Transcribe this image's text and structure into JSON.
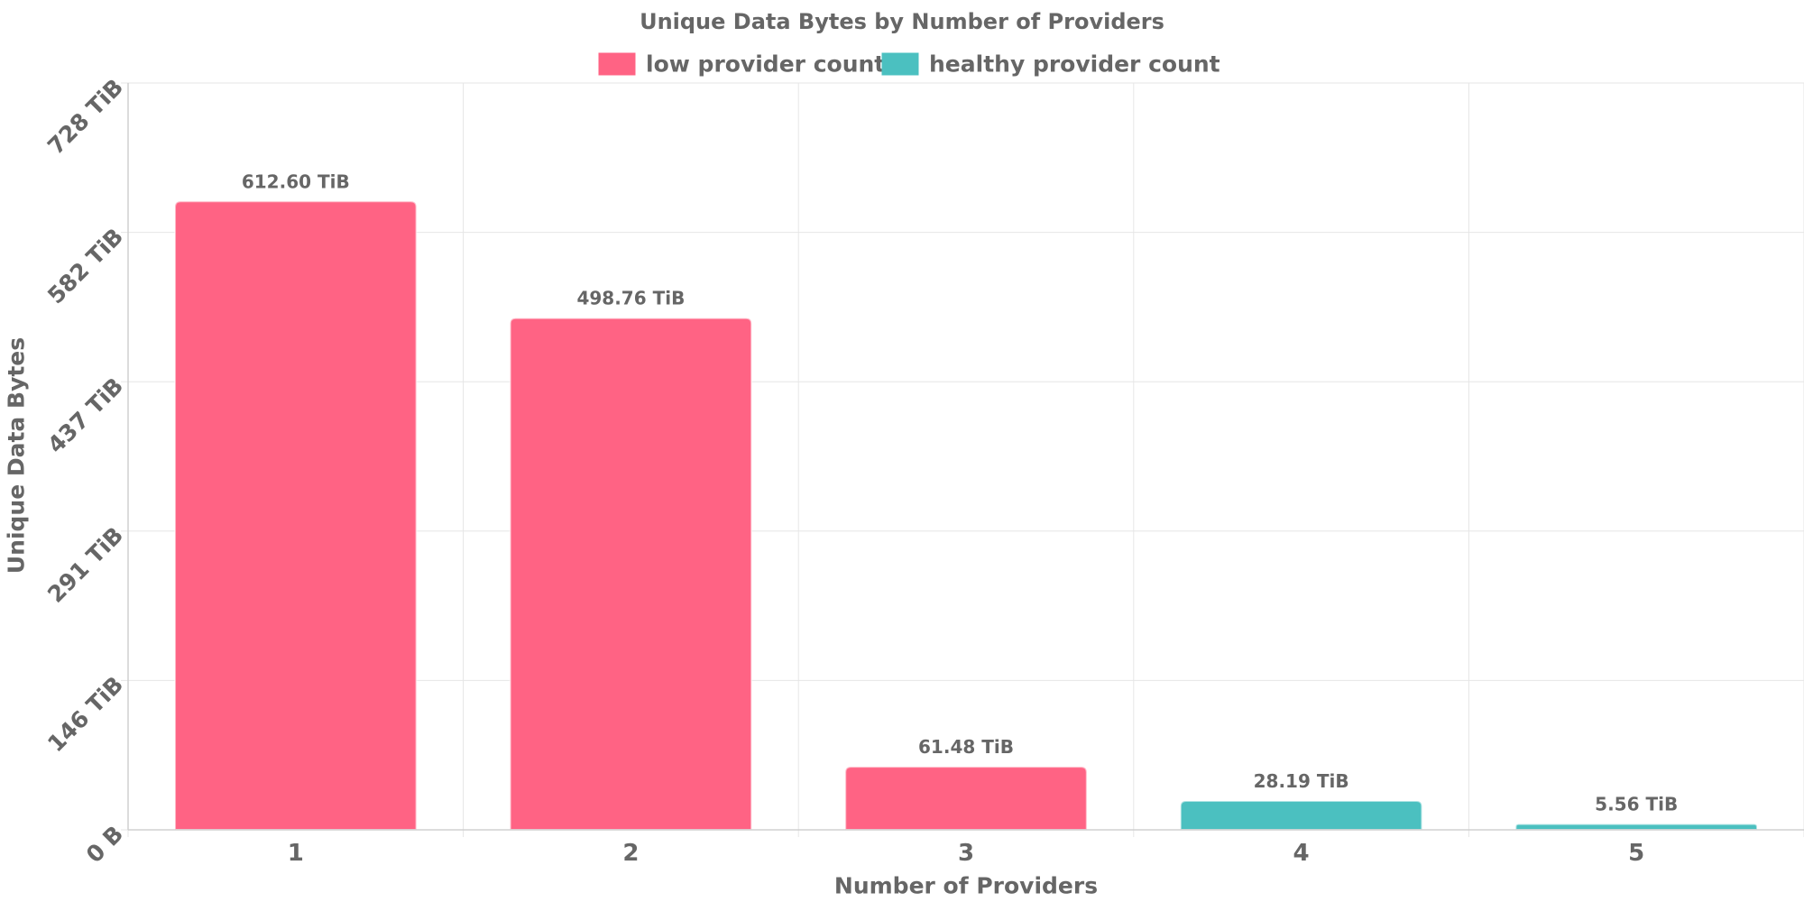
{
  "chart_data": {
    "type": "bar",
    "title": "Unique Data Bytes by Number of Providers",
    "xlabel": "Number of Providers",
    "ylabel": "Unique Data Bytes",
    "ylim": [
      0,
      728
    ],
    "y_unit": "TiB",
    "y_ticks": [
      0,
      145.6,
      291.2,
      436.8,
      582.4,
      728
    ],
    "y_tick_labels": [
      "0 B",
      "146 TiB",
      "291 TiB",
      "437 TiB",
      "582 TiB",
      "728 TiB"
    ],
    "categories": [
      "1",
      "2",
      "3",
      "4",
      "5"
    ],
    "values": [
      612.6,
      498.76,
      61.48,
      28.19,
      5.56
    ],
    "data_labels": [
      "612.60 TiB",
      "498.76 TiB",
      "61.48 TiB",
      "28.19 TiB",
      "5.56 TiB"
    ],
    "bar_series": [
      "low provider count",
      "low provider count",
      "low provider count",
      "healthy provider count",
      "healthy provider count"
    ],
    "legend": [
      {
        "name": "low provider count",
        "color": "#ff6384"
      },
      {
        "name": "healthy provider count",
        "color": "#4bc0c0"
      }
    ],
    "legend_position": "top",
    "grid": true
  }
}
